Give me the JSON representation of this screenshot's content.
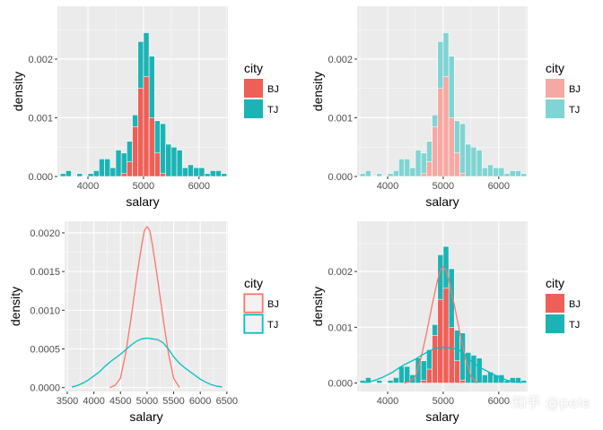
{
  "colors": {
    "BJ": "#f8766d",
    "TJ": "#00bfc4",
    "BJ_hist": "#ee5f57",
    "TJ_hist": "#1db3b4",
    "BJ_light": "#f6a9a3",
    "TJ_light": "#80d4d3"
  },
  "watermark": "知乎 @pele",
  "chart_data": [
    {
      "type": "histogram",
      "panel": "top-left",
      "xlabel": "salary",
      "ylabel": "density",
      "xlim": [
        3450,
        6520
      ],
      "ylim": [
        0,
        0.0029
      ],
      "xticks": [
        4000,
        5000,
        6000
      ],
      "yticks": [
        0,
        0.001,
        0.002
      ],
      "ytick_labels": [
        "0.000",
        "0.001",
        "0.002"
      ],
      "bin_width": 100,
      "legend": {
        "title": "city",
        "position": "right",
        "entries": [
          "BJ",
          "TJ"
        ]
      },
      "series": [
        {
          "name": "TJ",
          "color_key": "TJ_hist",
          "bins": [
            [
              3550,
              5e-05
            ],
            [
              3650,
              0.0001
            ],
            [
              3850,
              5e-05
            ],
            [
              4050,
              5e-05
            ],
            [
              4150,
              0.0001
            ],
            [
              4250,
              0.0003
            ],
            [
              4350,
              0.0003
            ],
            [
              4450,
              0.00015
            ],
            [
              4550,
              0.00045
            ],
            [
              4650,
              0.0004
            ],
            [
              4750,
              0.0006
            ],
            [
              4850,
              0.00105
            ],
            [
              4950,
              0.0023
            ],
            [
              5050,
              0.00245
            ],
            [
              5150,
              0.00205
            ],
            [
              5250,
              0.00095
            ],
            [
              5350,
              0.0009
            ],
            [
              5450,
              0.00055
            ],
            [
              5550,
              0.0005
            ],
            [
              5650,
              0.00045
            ],
            [
              5750,
              0.00015
            ],
            [
              5850,
              0.0002
            ],
            [
              5950,
              0.00015
            ],
            [
              6050,
              0.00015
            ],
            [
              6150,
              5e-05
            ],
            [
              6250,
              0.0001
            ],
            [
              6350,
              0.0001
            ],
            [
              6450,
              5e-05
            ]
          ]
        },
        {
          "name": "BJ",
          "color_key": "BJ_hist",
          "bins": [
            [
              4650,
              5e-05
            ],
            [
              4750,
              0.00025
            ],
            [
              4850,
              0.00085
            ],
            [
              4950,
              0.0015
            ],
            [
              5050,
              0.0017
            ],
            [
              5150,
              0.001
            ],
            [
              5250,
              0.0004
            ],
            [
              5350,
              5e-05
            ]
          ]
        }
      ]
    },
    {
      "type": "histogram",
      "panel": "top-right",
      "xlabel": "salary",
      "ylabel": "density",
      "xlim": [
        3450,
        6520
      ],
      "ylim": [
        0,
        0.0029
      ],
      "xticks": [
        4000,
        5000,
        6000
      ],
      "yticks": [
        0,
        0.001,
        0.002
      ],
      "ytick_labels": [
        "0.000",
        "0.001",
        "0.002"
      ],
      "bin_width": 100,
      "alpha": 0.5,
      "legend": {
        "title": "city",
        "position": "right",
        "entries": [
          "BJ",
          "TJ"
        ]
      },
      "series": [
        {
          "name": "TJ",
          "color_key": "TJ_light",
          "bins": [
            [
              3550,
              5e-05
            ],
            [
              3650,
              0.0001
            ],
            [
              3850,
              5e-05
            ],
            [
              4050,
              5e-05
            ],
            [
              4150,
              0.0001
            ],
            [
              4250,
              0.0003
            ],
            [
              4350,
              0.0003
            ],
            [
              4450,
              0.00015
            ],
            [
              4550,
              0.00045
            ],
            [
              4650,
              0.0004
            ],
            [
              4750,
              0.0006
            ],
            [
              4850,
              0.00105
            ],
            [
              4950,
              0.0023
            ],
            [
              5050,
              0.00245
            ],
            [
              5150,
              0.00205
            ],
            [
              5250,
              0.00095
            ],
            [
              5350,
              0.0009
            ],
            [
              5450,
              0.00055
            ],
            [
              5550,
              0.0005
            ],
            [
              5650,
              0.00045
            ],
            [
              5750,
              0.00015
            ],
            [
              5850,
              0.0002
            ],
            [
              5950,
              0.00015
            ],
            [
              6050,
              0.00015
            ],
            [
              6150,
              5e-05
            ],
            [
              6250,
              0.0001
            ],
            [
              6350,
              0.0001
            ],
            [
              6450,
              5e-05
            ]
          ]
        },
        {
          "name": "BJ",
          "color_key": "BJ_light",
          "bins": [
            [
              4650,
              5e-05
            ],
            [
              4750,
              0.00025
            ],
            [
              4850,
              0.00085
            ],
            [
              4950,
              0.0015
            ],
            [
              5050,
              0.0017
            ],
            [
              5150,
              0.001
            ],
            [
              5250,
              0.0004
            ],
            [
              5350,
              5e-05
            ]
          ]
        }
      ]
    },
    {
      "type": "density",
      "panel": "bottom-left",
      "xlabel": "salary",
      "ylabel": "density",
      "xlim": [
        3450,
        6520
      ],
      "ylim": [
        -5e-05,
        0.00215
      ],
      "xticks": [
        3500,
        4000,
        4500,
        5000,
        5500,
        6000,
        6500
      ],
      "yticks": [
        0,
        0.0005,
        0.001,
        0.0015,
        0.002
      ],
      "ytick_labels": [
        "0.0000",
        "0.0005",
        "0.0010",
        "0.0015",
        "0.0020"
      ],
      "legend": {
        "title": "city",
        "position": "right",
        "entries": [
          "BJ",
          "TJ"
        ],
        "style": "outline"
      },
      "series": [
        {
          "name": "BJ",
          "color_key": "BJ",
          "x": [
            4300,
            4400,
            4500,
            4600,
            4700,
            4800,
            4900,
            4950,
            5000,
            5050,
            5100,
            5200,
            5300,
            5400,
            5500,
            5600
          ],
          "y": [
            0,
            3e-05,
            0.00012,
            0.00045,
            0.0009,
            0.0014,
            0.00185,
            0.00203,
            0.00208,
            0.00203,
            0.00185,
            0.0014,
            0.0009,
            0.00045,
            0.00012,
            1e-05
          ]
        },
        {
          "name": "TJ",
          "color_key": "TJ",
          "x": [
            3600,
            3700,
            3800,
            3900,
            4000,
            4100,
            4200,
            4300,
            4400,
            4500,
            4600,
            4700,
            4800,
            4900,
            5000,
            5100,
            5200,
            5300,
            5400,
            5500,
            5600,
            5700,
            5800,
            5900,
            6000,
            6100,
            6200,
            6300,
            6400
          ],
          "y": [
            1e-05,
            3e-05,
            6e-05,
            0.0001,
            0.00015,
            0.0002,
            0.00027,
            0.00033,
            0.00038,
            0.00043,
            0.00049,
            0.00055,
            0.0006,
            0.00063,
            0.00064,
            0.00063,
            0.00062,
            0.00058,
            0.0005,
            0.0004,
            0.00032,
            0.00026,
            0.00021,
            0.00016,
            0.00011,
            7e-05,
            4e-05,
            2e-05,
            1e-05
          ]
        }
      ]
    },
    {
      "type": "histogram+density",
      "panel": "bottom-right",
      "xlabel": "salary",
      "ylabel": "density",
      "xlim": [
        3450,
        6520
      ],
      "ylim": [
        -0.00015,
        0.0029
      ],
      "xticks": [
        4000,
        5000,
        6000
      ],
      "yticks": [
        0,
        0.001,
        0.002
      ],
      "ytick_labels": [
        "0.000",
        "0.001",
        "0.002"
      ],
      "bin_width": 100,
      "legend": {
        "title": "city",
        "position": "right",
        "entries": [
          "BJ",
          "TJ"
        ]
      },
      "series": [
        {
          "name": "TJ",
          "color_key": "TJ_hist",
          "bins": [
            [
              3550,
              5e-05
            ],
            [
              3650,
              0.0001
            ],
            [
              3850,
              5e-05
            ],
            [
              4050,
              5e-05
            ],
            [
              4150,
              0.0001
            ],
            [
              4250,
              0.0003
            ],
            [
              4350,
              0.0003
            ],
            [
              4450,
              0.00015
            ],
            [
              4550,
              0.00045
            ],
            [
              4650,
              0.0004
            ],
            [
              4750,
              0.0006
            ],
            [
              4850,
              0.00105
            ],
            [
              4950,
              0.0023
            ],
            [
              5050,
              0.00245
            ],
            [
              5150,
              0.00205
            ],
            [
              5250,
              0.00095
            ],
            [
              5350,
              0.0009
            ],
            [
              5450,
              0.00055
            ],
            [
              5550,
              0.0005
            ],
            [
              5650,
              0.00045
            ],
            [
              5750,
              0.00015
            ],
            [
              5850,
              0.0002
            ],
            [
              5950,
              0.00015
            ],
            [
              6050,
              0.00015
            ],
            [
              6150,
              5e-05
            ],
            [
              6250,
              0.0001
            ],
            [
              6350,
              0.0001
            ],
            [
              6450,
              5e-05
            ]
          ]
        },
        {
          "name": "BJ",
          "color_key": "BJ_hist",
          "bins": [
            [
              4650,
              5e-05
            ],
            [
              4750,
              0.00025
            ],
            [
              4850,
              0.00085
            ],
            [
              4950,
              0.0015
            ],
            [
              5050,
              0.0017
            ],
            [
              5150,
              0.001
            ],
            [
              5250,
              0.0004
            ],
            [
              5350,
              5e-05
            ]
          ]
        }
      ],
      "density_series": [
        {
          "name": "BJ",
          "color_key": "BJ",
          "x": [
            4300,
            4400,
            4500,
            4600,
            4700,
            4800,
            4900,
            4950,
            5000,
            5050,
            5100,
            5200,
            5300,
            5400,
            5500,
            5600
          ],
          "y": [
            0,
            3e-05,
            0.00012,
            0.00045,
            0.0009,
            0.0014,
            0.00185,
            0.00203,
            0.00208,
            0.00203,
            0.00185,
            0.0014,
            0.0009,
            0.00045,
            0.00012,
            1e-05
          ]
        },
        {
          "name": "TJ",
          "color_key": "TJ",
          "x": [
            3600,
            3700,
            3800,
            3900,
            4000,
            4100,
            4200,
            4300,
            4400,
            4500,
            4600,
            4700,
            4800,
            4900,
            5000,
            5100,
            5200,
            5300,
            5400,
            5500,
            5600,
            5700,
            5800,
            5900,
            6000,
            6100,
            6200,
            6300,
            6400
          ],
          "y": [
            1e-05,
            3e-05,
            6e-05,
            0.0001,
            0.00015,
            0.0002,
            0.00027,
            0.00033,
            0.00038,
            0.00043,
            0.00049,
            0.00055,
            0.0006,
            0.00063,
            0.00064,
            0.00063,
            0.00062,
            0.00058,
            0.0005,
            0.0004,
            0.00032,
            0.00026,
            0.00021,
            0.00016,
            0.00011,
            7e-05,
            4e-05,
            2e-05,
            1e-05
          ]
        }
      ]
    }
  ]
}
